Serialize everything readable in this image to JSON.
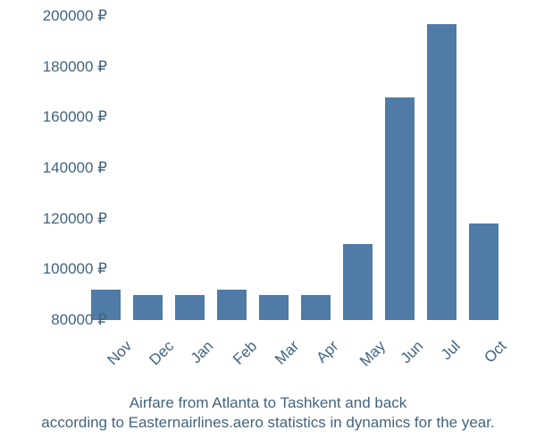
{
  "chart": {
    "type": "bar",
    "categories": [
      "Nov",
      "Dec",
      "Jan",
      "Feb",
      "Mar",
      "Apr",
      "May",
      "Jun",
      "Jul",
      "Oct"
    ],
    "values": [
      92000,
      90000,
      90000,
      92000,
      90000,
      90000,
      110000,
      168000,
      197000,
      118000
    ],
    "bar_color": "#4f7ba6",
    "bar_width": 0.7,
    "ylim": [
      80000,
      200000
    ],
    "ytick_step": 20000,
    "y_ticks": [
      80000,
      100000,
      120000,
      140000,
      160000,
      180000,
      200000
    ],
    "y_tick_labels": [
      "80000 ₽",
      "100000 ₽",
      "120000 ₽",
      "140000 ₽",
      "160000 ₽",
      "180000 ₽",
      "200000 ₽"
    ],
    "label_color": "#43647f",
    "label_fontsize": 17,
    "background_color": "#ffffff",
    "x_label_rotation": -45
  },
  "caption": {
    "line1": "Airfare from Atlanta to Tashkent and back",
    "line2": "according to Easternairlines.aero statistics in dynamics for the year."
  }
}
